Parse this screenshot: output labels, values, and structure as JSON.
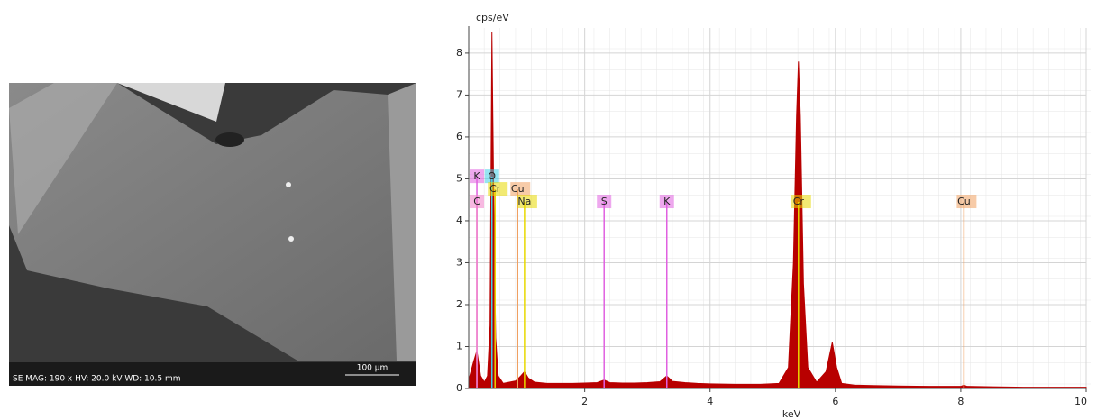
{
  "image": {
    "caption": "SE  MAG: 190 x  HV: 20.0 kV  WD: 10.5 mm",
    "scale_bar": "100 µm"
  },
  "chart_data": {
    "type": "area",
    "ylabel": "cps/eV",
    "xlabel": "keV",
    "x": [
      0.15,
      0.22,
      0.28,
      0.34,
      0.4,
      0.45,
      0.49,
      0.52,
      0.55,
      0.58,
      0.62,
      0.7,
      0.8,
      0.9,
      0.98,
      1.04,
      1.1,
      1.2,
      1.4,
      1.6,
      1.8,
      2.0,
      2.2,
      2.31,
      2.4,
      2.6,
      2.8,
      3.0,
      3.2,
      3.31,
      3.4,
      3.6,
      3.8,
      4.0,
      4.4,
      4.8,
      5.1,
      5.25,
      5.33,
      5.38,
      5.41,
      5.44,
      5.49,
      5.56,
      5.7,
      5.85,
      5.95,
      6.02,
      6.1,
      6.3,
      6.6,
      7.0,
      7.5,
      8.0,
      8.05,
      8.1,
      8.5,
      9.0,
      9.5,
      10
    ],
    "values": [
      0.2,
      0.6,
      0.9,
      0.3,
      0.15,
      0.3,
      1.5,
      8.5,
      4.4,
      1.2,
      0.3,
      0.12,
      0.15,
      0.18,
      0.3,
      0.4,
      0.25,
      0.15,
      0.12,
      0.12,
      0.12,
      0.13,
      0.14,
      0.2,
      0.14,
      0.13,
      0.13,
      0.14,
      0.16,
      0.3,
      0.17,
      0.14,
      0.12,
      0.11,
      0.1,
      0.1,
      0.12,
      0.5,
      3.0,
      6.5,
      7.8,
      6.5,
      2.5,
      0.5,
      0.15,
      0.4,
      1.1,
      0.5,
      0.12,
      0.08,
      0.07,
      0.06,
      0.05,
      0.05,
      0.08,
      0.05,
      0.04,
      0.03,
      0.03,
      0.03
    ],
    "color": "#b80000",
    "xlim": [
      0.15,
      10
    ],
    "ylim": [
      0,
      8.6
    ],
    "xticks": [
      2,
      4,
      6,
      8,
      10
    ],
    "yticks": [
      0,
      1,
      2,
      3,
      4,
      5,
      6,
      7,
      8
    ],
    "grid": true,
    "markers": [
      {
        "label": "K",
        "x": 0.28,
        "color": "#e060e0"
      },
      {
        "label": "C",
        "x": 0.28,
        "color": "#f080c8"
      },
      {
        "label": "O",
        "x": 0.52,
        "color": "#40d0e8"
      },
      {
        "label": "Cr",
        "x": 0.57,
        "color": "#e8d800"
      },
      {
        "label": "Cu",
        "x": 0.93,
        "color": "#f0a060"
      },
      {
        "label": "Na",
        "x": 1.04,
        "color": "#e8d800"
      },
      {
        "label": "S",
        "x": 2.31,
        "color": "#e060e0"
      },
      {
        "label": "K",
        "x": 3.31,
        "color": "#e060e0"
      },
      {
        "label": "Cr",
        "x": 5.41,
        "color": "#e8d800"
      },
      {
        "label": "Cu",
        "x": 8.05,
        "color": "#f0a060"
      }
    ]
  }
}
